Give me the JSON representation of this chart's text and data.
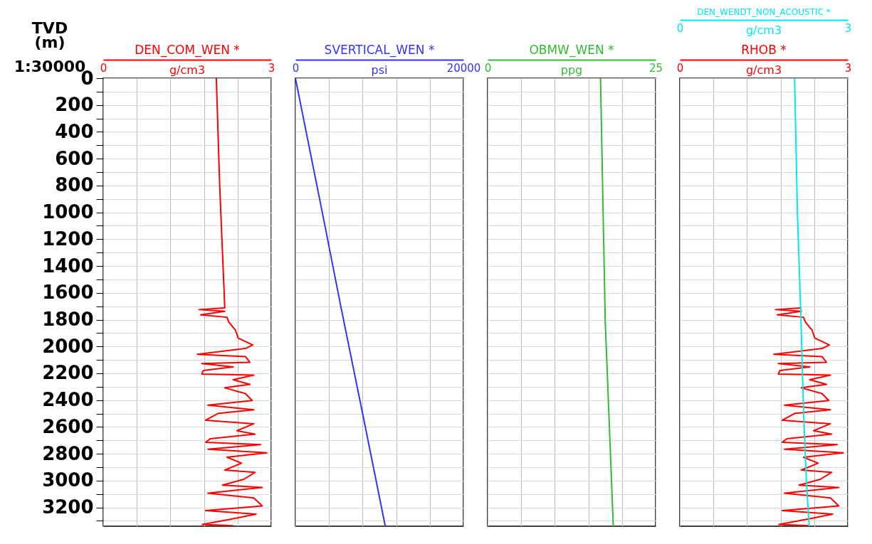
{
  "chart_data": [
    {
      "type": "line",
      "orientation": "horizontal",
      "xlabel": "g/cm3",
      "xlim": [
        0,
        3
      ],
      "xticks": [
        0,
        {
          "value": 0.6,
          "label": null
        },
        {
          "value": 1.2,
          "label": null
        },
        {
          "value": 1.8,
          "label": null
        },
        {
          "value": 2.4,
          "label": null
        },
        3
      ],
      "ylabel": "TVD (m)",
      "ylim": [
        3340,
        0
      ],
      "yticks": [
        0,
        {
          "value": 100,
          "label": null
        },
        200,
        {
          "value": 300,
          "label": null
        },
        400,
        {
          "value": 500,
          "label": null
        },
        600,
        {
          "value": 700,
          "label": null
        },
        800,
        {
          "value": 900,
          "label": null
        },
        1000,
        {
          "value": 1100,
          "label": null
        },
        1200,
        {
          "value": 1300,
          "label": null
        },
        1400,
        {
          "value": 1500,
          "label": null
        },
        1600,
        {
          "value": 1700,
          "label": null
        },
        1800,
        {
          "value": 1900,
          "label": null
        },
        2000,
        {
          "value": 2100,
          "label": null
        },
        2200,
        {
          "value": 2300,
          "label": null
        },
        2400,
        {
          "value": 2500,
          "label": null
        },
        2600,
        {
          "value": 2700,
          "label": null
        },
        2800,
        {
          "value": 2900,
          "label": null
        },
        3000,
        {
          "value": 3100,
          "label": null
        },
        3200,
        {
          "value": 3300,
          "label": null
        }
      ],
      "annotations": [
        "1:30000"
      ],
      "grid": true,
      "series": [
        {
          "name": "DEN_COM_WEN *",
          "color": "#ff0000",
          "x": [
            0,
            400,
            800,
            1200,
            1700,
            1712,
            1725,
            1738,
            1764,
            1782,
            1816,
            1877,
            1937,
            1989,
            2015,
            2058,
            2075,
            2118,
            2127,
            2153,
            2179,
            2205,
            2213,
            2248,
            2282,
            2308,
            2351,
            2403,
            2438,
            2472,
            2498,
            2550,
            2576,
            2628,
            2654,
            2688,
            2714,
            2731,
            2766,
            2792,
            2826,
            2870,
            2921,
            2939,
            2990,
            3034,
            3051,
            3094,
            3129,
            3189,
            3224,
            3250,
            3284,
            3327,
            3336
          ],
          "values": [
            2.02,
            2.05,
            2.08,
            2.12,
            2.17,
            2.17,
            1.71,
            2.17,
            1.74,
            2.21,
            2.24,
            2.36,
            2.41,
            2.67,
            2.54,
            1.68,
            2.54,
            2.62,
            1.76,
            2.32,
            1.79,
            1.76,
            2.69,
            2.32,
            2.62,
            2.17,
            2.54,
            2.66,
            1.87,
            2.69,
            2.06,
            1.83,
            2.69,
            2.39,
            2.71,
            1.91,
            1.83,
            2.81,
            1.87,
            2.92,
            2.21,
            2.47,
            2.17,
            2.71,
            2.51,
            2.13,
            2.84,
            1.87,
            2.69,
            2.84,
            1.83,
            2.73,
            2.32,
            1.77,
            2.32
          ]
        }
      ]
    },
    {
      "type": "line",
      "orientation": "horizontal",
      "xlabel": "psi",
      "xlim": [
        0,
        20000
      ],
      "xticks": [
        0,
        {
          "value": 4000,
          "label": null
        },
        {
          "value": 8000,
          "label": null
        },
        {
          "value": 12000,
          "label": null
        },
        {
          "value": 16000,
          "label": null
        },
        20000
      ],
      "ylim": [
        3340,
        0
      ],
      "yticks": [
        0,
        {
          "value": 100,
          "label": null
        },
        200,
        {
          "value": 300,
          "label": null
        },
        400,
        {
          "value": 500,
          "label": null
        },
        600,
        {
          "value": 700,
          "label": null
        },
        800,
        {
          "value": 900,
          "label": null
        },
        1000,
        {
          "value": 1100,
          "label": null
        },
        1200,
        {
          "value": 1300,
          "label": null
        },
        1400,
        {
          "value": 1500,
          "label": null
        },
        1600,
        {
          "value": 1700,
          "label": null
        },
        1800,
        {
          "value": 1900,
          "label": null
        },
        2000,
        {
          "value": 2100,
          "label": null
        },
        2200,
        {
          "value": 2300,
          "label": null
        },
        2400,
        {
          "value": 2500,
          "label": null
        },
        2600,
        {
          "value": 2700,
          "label": null
        },
        2800,
        {
          "value": 2900,
          "label": null
        },
        3000,
        {
          "value": 3100,
          "label": null
        },
        3200,
        {
          "value": 3300,
          "label": null
        }
      ],
      "tick_labels": "x",
      "grid": true,
      "series": [
        {
          "name": "SVERTICAL_WEN *",
          "color": "#3333ff",
          "x": [
            0,
            1000,
            1700,
            2500,
            3340
          ],
          "values": [
            0,
            3200,
            5400,
            8000,
            10700
          ]
        }
      ]
    },
    {
      "type": "line",
      "orientation": "horizontal",
      "xlabel": "ppg",
      "xlim": [
        0,
        25
      ],
      "xticks": [
        0,
        {
          "value": 5,
          "label": null
        },
        {
          "value": 10,
          "label": null
        },
        {
          "value": 15,
          "label": null
        },
        {
          "value": 20,
          "label": null
        },
        25
      ],
      "ylim": [
        3340,
        0
      ],
      "yticks": [
        0,
        {
          "value": 100,
          "label": null
        },
        200,
        {
          "value": 300,
          "label": null
        },
        400,
        {
          "value": 500,
          "label": null
        },
        600,
        {
          "value": 700,
          "label": null
        },
        800,
        {
          "value": 900,
          "label": null
        },
        1000,
        {
          "value": 1100,
          "label": null
        },
        1200,
        {
          "value": 1300,
          "label": null
        },
        1400,
        {
          "value": 1500,
          "label": null
        },
        1600,
        {
          "value": 1700,
          "label": null
        },
        1800,
        {
          "value": 1900,
          "label": null
        },
        2000,
        {
          "value": 2100,
          "label": null
        },
        2200,
        {
          "value": 2300,
          "label": null
        },
        2400,
        {
          "value": 2500,
          "label": null
        },
        2600,
        {
          "value": 2700,
          "label": null
        },
        2800,
        {
          "value": 2900,
          "label": null
        },
        3000,
        {
          "value": 3100,
          "label": null
        },
        3200,
        {
          "value": 3300,
          "label": null
        }
      ],
      "tick_labels": "x",
      "grid": true,
      "series": [
        {
          "name": "OBMW_WEN *",
          "color": "#33bb33",
          "x": [
            0,
            1800,
            3340
          ],
          "values": [
            16.8,
            17.5,
            18.7
          ]
        }
      ]
    },
    {
      "type": "line",
      "orientation": "horizontal",
      "xlabel": "g/cm3",
      "xlim": [
        0,
        3
      ],
      "xticks": [
        0,
        {
          "value": 0.6,
          "label": null
        },
        {
          "value": 1.2,
          "label": null
        },
        {
          "value": 1.8,
          "label": null
        },
        {
          "value": 2.4,
          "label": null
        },
        3
      ],
      "x2label": "g/cm3",
      "x2lim": [
        0,
        3
      ],
      "x2ticks": [
        0,
        3
      ],
      "ylim": [
        3340,
        0
      ],
      "yticks": [
        0,
        {
          "value": 100,
          "label": null
        },
        200,
        {
          "value": 300,
          "label": null
        },
        400,
        {
          "value": 500,
          "label": null
        },
        600,
        {
          "value": 700,
          "label": null
        },
        800,
        {
          "value": 900,
          "label": null
        },
        1000,
        {
          "value": 1100,
          "label": null
        },
        1200,
        {
          "value": 1300,
          "label": null
        },
        1400,
        {
          "value": 1500,
          "label": null
        },
        1600,
        {
          "value": 1700,
          "label": null
        },
        1800,
        {
          "value": 1900,
          "label": null
        },
        2000,
        {
          "value": 2100,
          "label": null
        },
        2200,
        {
          "value": 2300,
          "label": null
        },
        2400,
        {
          "value": 2500,
          "label": null
        },
        2600,
        {
          "value": 2700,
          "label": null
        },
        2800,
        {
          "value": 2900,
          "label": null
        },
        3000,
        {
          "value": 3100,
          "label": null
        },
        3200,
        {
          "value": 3300,
          "label": null
        }
      ],
      "tick_labels": "x",
      "grid": true,
      "series": [
        {
          "name": "RHOB *",
          "color": "#ff0000",
          "x": [
            1712,
            1725,
            1738,
            1764,
            1782,
            1816,
            1877,
            1937,
            1989,
            2015,
            2058,
            2075,
            2118,
            2127,
            2153,
            2179,
            2205,
            2213,
            2248,
            2282,
            2308,
            2351,
            2403,
            2438,
            2472,
            2498,
            2550,
            2576,
            2628,
            2654,
            2688,
            2714,
            2731,
            2766,
            2792,
            2826,
            2870,
            2921,
            2939,
            2990,
            3034,
            3051,
            3094,
            3129,
            3189,
            3224,
            3250,
            3284,
            3327,
            3336
          ],
          "values": [
            2.17,
            1.71,
            2.17,
            1.74,
            2.21,
            2.24,
            2.36,
            2.41,
            2.67,
            2.54,
            1.68,
            2.54,
            2.62,
            1.76,
            2.32,
            1.79,
            1.76,
            2.69,
            2.32,
            2.62,
            2.17,
            2.54,
            2.66,
            1.87,
            2.69,
            2.06,
            1.83,
            2.69,
            2.39,
            2.71,
            1.91,
            1.83,
            2.81,
            1.87,
            2.92,
            2.21,
            2.47,
            2.17,
            2.71,
            2.51,
            2.13,
            2.84,
            1.87,
            2.69,
            2.84,
            1.83,
            2.73,
            2.32,
            1.77,
            2.32
          ]
        },
        {
          "name": "DEN_WENDT_NON_ACOUSTIC *",
          "color": "#00e8f0",
          "axis": "x2",
          "x": [
            0,
            1000,
            1750,
            2200,
            2600,
            3000,
            3340
          ],
          "values": [
            2.05,
            2.1,
            2.16,
            2.19,
            2.22,
            2.26,
            2.31
          ]
        }
      ]
    }
  ]
}
